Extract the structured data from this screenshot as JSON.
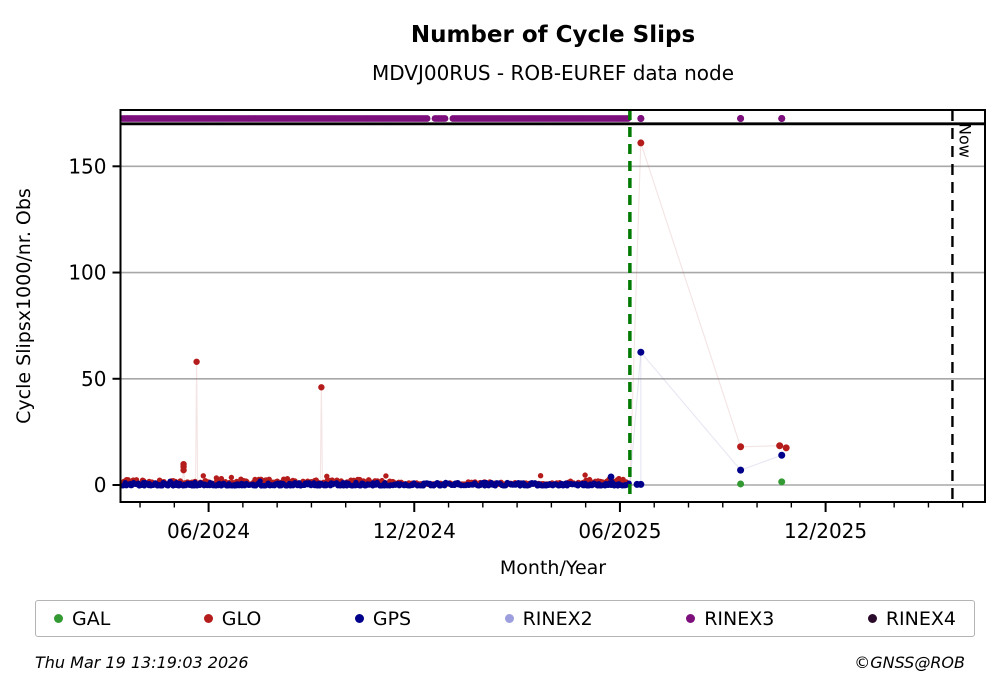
{
  "title": "Number of Cycle Slips",
  "subtitle": "MDVJ00RUS - ROB-EUREF data node",
  "footer": {
    "timestamp": "Thu Mar 19 13:19:03 2026",
    "credit": "©GNSS@ROB"
  },
  "legend": [
    {
      "label": "GAL",
      "color": "#339933"
    },
    {
      "label": "GLO",
      "color": "#b51c1c"
    },
    {
      "label": "GPS",
      "color": "#00008b"
    },
    {
      "label": "RINEX2",
      "color": "#9c9ede"
    },
    {
      "label": "RINEX3",
      "color": "#7d0f7d"
    },
    {
      "label": "RINEX4",
      "color": "#2b0b2b"
    }
  ],
  "chart_data": {
    "type": "scatter",
    "title": "Number of Cycle Slips",
    "subtitle": "MDVJ00RUS - ROB-EUREF data node",
    "xlabel": "Month/Year",
    "ylabel": "Cycle Slipsx1000/nr. Obs",
    "x_major_ticks": [
      {
        "month": 0,
        "label": "06/2024"
      },
      {
        "month": 6,
        "label": "12/2024"
      },
      {
        "month": 12,
        "label": "06/2025"
      },
      {
        "month": 18,
        "label": "12/2025"
      }
    ],
    "x_minor_tick_months": [
      -2,
      -1,
      1,
      2,
      3,
      4,
      5,
      7,
      8,
      9,
      10,
      11,
      13,
      14,
      15,
      16,
      17,
      19,
      20,
      21,
      22
    ],
    "y_ticks": [
      0,
      50,
      100,
      150
    ],
    "xlim_months": [
      -2.57,
      22.65
    ],
    "ylim": [
      -8,
      176.5
    ],
    "grid": true,
    "gridline_color": "#a8a8a8",
    "series_colors": {
      "GAL": "#339933",
      "GLO": "#b51c1c",
      "GPS": "#00008b",
      "RINEX2": "#9c9ede",
      "RINEX3": "#7d0f7d",
      "RINEX4": "#2b0b2b"
    },
    "reference_line": {
      "value": 170,
      "color": "#000000"
    },
    "rinex3_row": {
      "value": 172.5,
      "start_month": -2.5,
      "end_month": 12.27,
      "gap_months": [
        [
          6.38,
          6.58
        ],
        [
          6.93,
          7.08
        ]
      ],
      "isolated_months": [
        12.61,
        15.52,
        16.72
      ]
    },
    "baseline_band": {
      "comment": "dense daily GLO/GPS cycle-slip values near zero from mid-Mar-2024 until ~20-Jun-2025",
      "start_month": -2.5,
      "end_month": 12.27,
      "glo_typical_range": [
        0.2,
        4.5
      ],
      "gps_typical_range": [
        -1.0,
        2.0
      ],
      "seed": 1234
    },
    "glo_spikes": [
      {
        "month": -0.73,
        "values": [
          7,
          8.6,
          9.8
        ]
      },
      {
        "month": -0.35,
        "values": [
          58
        ]
      },
      {
        "month": 3.29,
        "values": [
          46
        ]
      }
    ],
    "gps_spikes": [
      {
        "month": 11.74,
        "values": [
          3.8
        ]
      }
    ],
    "post_points": [
      {
        "month": 12.5,
        "series": "GPS",
        "value": 0.3
      },
      {
        "month": 12.61,
        "series": "RINEX3",
        "value": 172.5
      },
      {
        "month": 12.61,
        "series": "GLO",
        "value": 161
      },
      {
        "month": 12.61,
        "series": "GPS",
        "value": 62.5
      },
      {
        "month": 12.61,
        "series": "GPS",
        "value": 0.3
      },
      {
        "month": 15.52,
        "series": "RINEX3",
        "value": 172.5
      },
      {
        "month": 15.52,
        "series": "GLO",
        "value": 18
      },
      {
        "month": 15.52,
        "series": "GPS",
        "value": 7
      },
      {
        "month": 15.52,
        "series": "GAL",
        "value": 0.5
      },
      {
        "month": 16.66,
        "series": "GLO",
        "value": 18.5
      },
      {
        "month": 16.72,
        "series": "RINEX3",
        "value": 172.5
      },
      {
        "month": 16.72,
        "series": "GPS",
        "value": 14
      },
      {
        "month": 16.72,
        "series": "GAL",
        "value": 1.5
      },
      {
        "month": 16.85,
        "series": "GLO",
        "value": 17.5
      }
    ],
    "connectors": {
      "red_chain": [
        [
          12.29,
          1
        ],
        [
          12.61,
          161
        ],
        [
          15.52,
          18
        ],
        [
          16.66,
          18.5
        ],
        [
          16.85,
          17.5
        ]
      ],
      "blue_chain": [
        [
          12.29,
          0.3
        ],
        [
          12.61,
          62.5
        ],
        [
          15.52,
          7
        ],
        [
          16.72,
          14
        ]
      ],
      "blue_vertical": [
        [
          12.61,
          62.5
        ],
        [
          12.61,
          0.3
        ]
      ],
      "red_spike_segments": [
        [
          [
            -0.76,
            1.2
          ],
          [
            -0.73,
            9.8
          ],
          [
            -0.7,
            1.2
          ]
        ],
        [
          [
            -0.38,
            1.2
          ],
          [
            -0.35,
            58
          ],
          [
            -0.32,
            1.2
          ]
        ],
        [
          [
            3.26,
            1.2
          ],
          [
            3.29,
            46
          ],
          [
            3.32,
            1.2
          ]
        ]
      ]
    },
    "event_lines": [
      {
        "name": "data-end-line",
        "month": 12.29,
        "color": "#007a00",
        "dash": "10,7",
        "label": ""
      },
      {
        "name": "now-line",
        "month": 21.7,
        "color": "#000000",
        "dash": "11,7",
        "label": "Now"
      }
    ]
  }
}
